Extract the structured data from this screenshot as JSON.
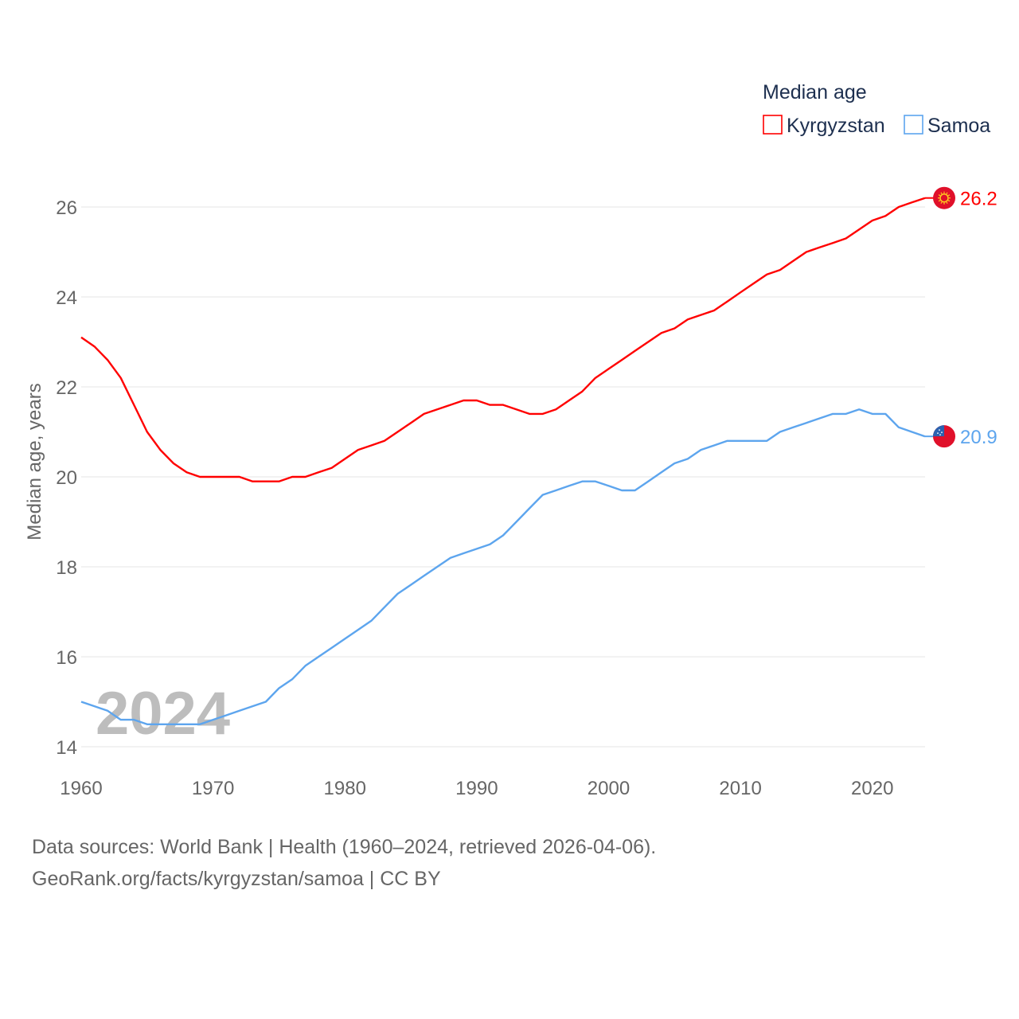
{
  "chart_data": {
    "type": "line",
    "title": "Median age",
    "xlabel": "",
    "ylabel": "Median age, years",
    "xlim": [
      1960,
      2024
    ],
    "ylim": [
      14,
      26.6
    ],
    "x_ticks": [
      1960,
      1970,
      1980,
      1990,
      2000,
      2010,
      2020
    ],
    "y_ticks": [
      14,
      16,
      18,
      20,
      22,
      24,
      26
    ],
    "grid": true,
    "legend_placement": "top-right",
    "year_watermark": "2024",
    "x": [
      1960,
      1961,
      1962,
      1963,
      1964,
      1965,
      1966,
      1967,
      1968,
      1969,
      1970,
      1971,
      1972,
      1973,
      1974,
      1975,
      1976,
      1977,
      1978,
      1979,
      1980,
      1981,
      1982,
      1983,
      1984,
      1985,
      1986,
      1987,
      1988,
      1989,
      1990,
      1991,
      1992,
      1993,
      1994,
      1995,
      1996,
      1997,
      1998,
      1999,
      2000,
      2001,
      2002,
      2003,
      2004,
      2005,
      2006,
      2007,
      2008,
      2009,
      2010,
      2011,
      2012,
      2013,
      2014,
      2015,
      2016,
      2017,
      2018,
      2019,
      2020,
      2021,
      2022,
      2023,
      2024
    ],
    "series": [
      {
        "name": "Kyrgyzstan",
        "color": "#ff0000",
        "end_label": "26.2",
        "flag": "kyrgyzstan-flag",
        "values": [
          23.1,
          22.9,
          22.6,
          22.2,
          21.6,
          21.0,
          20.6,
          20.3,
          20.1,
          20.0,
          20.0,
          20.0,
          20.0,
          19.9,
          19.9,
          19.9,
          20.0,
          20.0,
          20.1,
          20.2,
          20.4,
          20.6,
          20.7,
          20.8,
          21.0,
          21.2,
          21.4,
          21.5,
          21.6,
          21.7,
          21.7,
          21.6,
          21.6,
          21.5,
          21.4,
          21.4,
          21.5,
          21.7,
          21.9,
          22.2,
          22.4,
          22.6,
          22.8,
          23.0,
          23.2,
          23.3,
          23.5,
          23.6,
          23.7,
          23.9,
          24.1,
          24.3,
          24.5,
          24.6,
          24.8,
          25.0,
          25.1,
          25.2,
          25.3,
          25.5,
          25.7,
          25.8,
          26.0,
          26.1,
          26.2
        ]
      },
      {
        "name": "Samoa",
        "color": "#5da5ee",
        "end_label": "20.9",
        "flag": "samoa-flag",
        "values": [
          15.0,
          14.9,
          14.8,
          14.6,
          14.6,
          14.5,
          14.5,
          14.5,
          14.5,
          14.5,
          14.6,
          14.7,
          14.8,
          14.9,
          15.0,
          15.3,
          15.5,
          15.8,
          16.0,
          16.2,
          16.4,
          16.6,
          16.8,
          17.1,
          17.4,
          17.6,
          17.8,
          18.0,
          18.2,
          18.3,
          18.4,
          18.5,
          18.7,
          19.0,
          19.3,
          19.6,
          19.7,
          19.8,
          19.9,
          19.9,
          19.8,
          19.7,
          19.7,
          19.9,
          20.1,
          20.3,
          20.4,
          20.6,
          20.7,
          20.8,
          20.8,
          20.8,
          20.8,
          21.0,
          21.1,
          21.2,
          21.3,
          21.4,
          21.4,
          21.5,
          21.4,
          21.4,
          21.1,
          21.0,
          20.9
        ]
      }
    ]
  },
  "footer": {
    "line1": "Data sources: World Bank | Health (1960–2024, retrieved 2026-04-06).",
    "line2": "GeoRank.org/facts/kyrgyzstan/samoa | CC BY"
  }
}
